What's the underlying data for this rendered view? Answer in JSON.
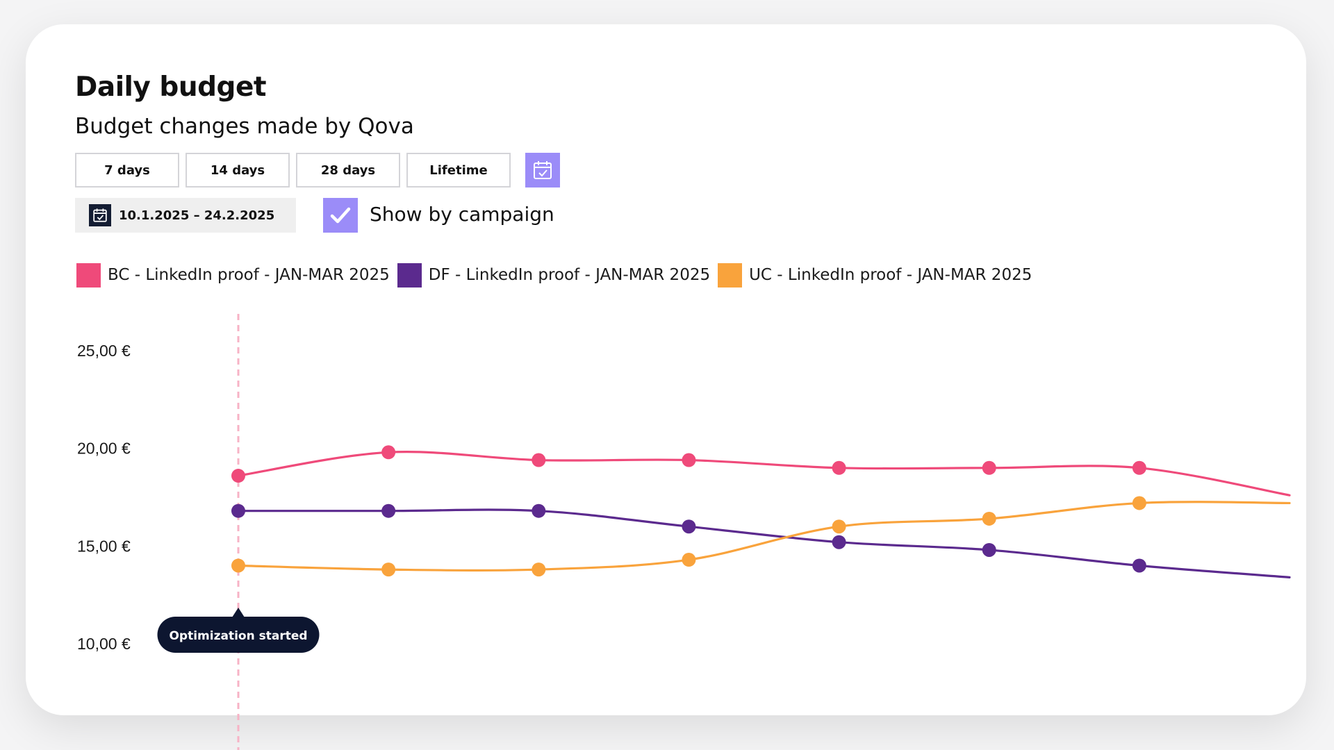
{
  "header": {
    "title": "Daily budget",
    "subtitle": "Budget changes made by Qova"
  },
  "filters": {
    "periods": [
      "7 days",
      "14 days",
      "28 days",
      "Lifetime"
    ],
    "calendar_icon": "calendar-check-icon",
    "date_range": "10.1.2025 – 24.2.2025",
    "show_by_campaign": {
      "label": "Show by campaign",
      "checked": true
    }
  },
  "colors": {
    "accent": "#9b8cf8",
    "grid_marker": "#f7b3c6",
    "tooltip_bg": "#0d1630"
  },
  "chart_data": {
    "type": "line",
    "x": [
      0,
      1,
      2,
      3,
      4,
      5,
      6,
      7
    ],
    "y_ticks": [
      "25,00 €",
      "20,00 €",
      "15,00 €",
      "10,00 €"
    ],
    "y_tick_values": [
      25,
      20,
      15,
      10
    ],
    "ylim": [
      10,
      25
    ],
    "grid": false,
    "legend_position": "top-left",
    "series": [
      {
        "name": "BC - LinkedIn proof - JAN-MAR 2025",
        "color": "#ef4a7a",
        "values": [
          18.6,
          19.8,
          19.4,
          19.4,
          19.0,
          19.0,
          19.0,
          17.6
        ]
      },
      {
        "name": "DF - LinkedIn proof - JAN-MAR 2025",
        "color": "#5b2a8e",
        "values": [
          16.8,
          16.8,
          16.8,
          16.0,
          15.2,
          14.8,
          14.0,
          13.4
        ]
      },
      {
        "name": "UC - LinkedIn proof - JAN-MAR 2025",
        "color": "#f9a33c",
        "values": [
          14.0,
          13.8,
          13.8,
          14.3,
          16.0,
          16.4,
          17.2,
          17.2
        ]
      }
    ],
    "annotation": {
      "label": "Optimization started",
      "x": 0
    }
  }
}
